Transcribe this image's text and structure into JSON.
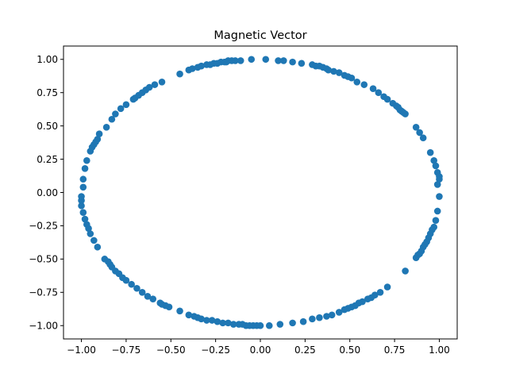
{
  "chart_data": {
    "type": "scatter",
    "title": "Magnetic Vector",
    "xlabel": "",
    "ylabel": "",
    "xlim": [
      -1.1,
      1.1
    ],
    "ylim": [
      -1.1,
      1.1
    ],
    "grid": false,
    "marker_color": "#1f77b4",
    "xticks": [
      -1.0,
      -0.75,
      -0.5,
      -0.25,
      0.0,
      0.25,
      0.5,
      0.75,
      1.0
    ],
    "xtick_labels": [
      "−1.00",
      "−0.75",
      "−0.50",
      "−0.25",
      "0.00",
      "0.25",
      "0.50",
      "0.75",
      "1.00"
    ],
    "yticks": [
      1.0,
      0.75,
      0.5,
      0.25,
      0.0,
      -0.25,
      -0.5,
      -0.75,
      -1.0
    ],
    "ytick_labels": [
      "1.00",
      "0.75",
      "0.50",
      "0.25",
      "0.00",
      "−0.25",
      "−0.50",
      "−0.75",
      "−1.00"
    ],
    "points": [
      [
        -0.45,
        0.89
      ],
      [
        -0.4,
        0.92
      ],
      [
        -0.38,
        0.93
      ],
      [
        -0.35,
        0.94
      ],
      [
        -0.33,
        0.95
      ],
      [
        -0.3,
        0.96
      ],
      [
        -0.28,
        0.96
      ],
      [
        -0.26,
        0.97
      ],
      [
        -0.24,
        0.97
      ],
      [
        -0.22,
        0.98
      ],
      [
        -0.2,
        0.98
      ],
      [
        -0.19,
        0.98
      ],
      [
        -0.18,
        0.99
      ],
      [
        -0.16,
        0.99
      ],
      [
        -0.14,
        0.99
      ],
      [
        -0.11,
        0.99
      ],
      [
        -0.05,
        1.0
      ],
      [
        0.03,
        1.0
      ],
      [
        0.1,
        0.99
      ],
      [
        0.13,
        0.99
      ],
      [
        0.18,
        0.98
      ],
      [
        0.23,
        0.97
      ],
      [
        0.29,
        0.96
      ],
      [
        0.31,
        0.95
      ],
      [
        0.33,
        0.95
      ],
      [
        0.35,
        0.94
      ],
      [
        0.37,
        0.93
      ],
      [
        0.38,
        0.92
      ],
      [
        0.41,
        0.91
      ],
      [
        0.44,
        0.9
      ],
      [
        0.47,
        0.88
      ],
      [
        0.49,
        0.87
      ],
      [
        0.51,
        0.86
      ],
      [
        0.54,
        0.83
      ],
      [
        0.58,
        0.81
      ],
      [
        0.63,
        0.78
      ],
      [
        0.66,
        0.75
      ],
      [
        0.69,
        0.72
      ],
      [
        0.71,
        0.7
      ],
      [
        0.74,
        0.67
      ],
      [
        0.76,
        0.65
      ],
      [
        0.77,
        0.64
      ],
      [
        0.78,
        0.62
      ],
      [
        0.79,
        0.61
      ],
      [
        0.8,
        0.6
      ],
      [
        0.81,
        0.59
      ],
      [
        0.87,
        0.49
      ],
      [
        0.89,
        0.45
      ],
      [
        0.91,
        0.41
      ],
      [
        0.95,
        0.3
      ],
      [
        0.97,
        0.24
      ],
      [
        0.98,
        0.2
      ],
      [
        0.99,
        0.15
      ],
      [
        1.0,
        0.12
      ],
      [
        1.0,
        0.1
      ],
      [
        0.99,
        0.06
      ],
      [
        1.0,
        -0.03
      ],
      [
        0.99,
        -0.14
      ],
      [
        0.98,
        -0.21
      ],
      [
        0.97,
        -0.26
      ],
      [
        0.96,
        -0.28
      ],
      [
        0.95,
        -0.31
      ],
      [
        0.94,
        -0.34
      ],
      [
        0.93,
        -0.37
      ],
      [
        0.92,
        -0.39
      ],
      [
        0.91,
        -0.41
      ],
      [
        0.9,
        -0.44
      ],
      [
        0.89,
        -0.46
      ],
      [
        0.88,
        -0.47
      ],
      [
        0.87,
        -0.49
      ],
      [
        0.81,
        -0.59
      ],
      [
        0.71,
        -0.71
      ],
      [
        0.67,
        -0.75
      ],
      [
        0.64,
        -0.77
      ],
      [
        0.62,
        -0.79
      ],
      [
        0.6,
        -0.8
      ],
      [
        0.57,
        -0.82
      ],
      [
        0.55,
        -0.83
      ],
      [
        0.53,
        -0.85
      ],
      [
        0.51,
        -0.86
      ],
      [
        0.49,
        -0.87
      ],
      [
        0.47,
        -0.88
      ],
      [
        0.44,
        -0.9
      ],
      [
        0.4,
        -0.92
      ],
      [
        0.37,
        -0.93
      ],
      [
        0.33,
        -0.94
      ],
      [
        0.29,
        -0.95
      ],
      [
        0.24,
        -0.97
      ],
      [
        0.18,
        -0.98
      ],
      [
        0.11,
        -0.99
      ],
      [
        0.05,
        -1.0
      ],
      [
        0.0,
        -1.0
      ],
      [
        -0.02,
        -1.0
      ],
      [
        -0.04,
        -1.0
      ],
      [
        -0.06,
        -1.0
      ],
      [
        -0.08,
        -1.0
      ],
      [
        -0.1,
        -0.99
      ],
      [
        -0.12,
        -0.99
      ],
      [
        -0.15,
        -0.99
      ],
      [
        -0.18,
        -0.98
      ],
      [
        -0.21,
        -0.98
      ],
      [
        -0.24,
        -0.97
      ],
      [
        -0.27,
        -0.96
      ],
      [
        -0.3,
        -0.96
      ],
      [
        -0.33,
        -0.95
      ],
      [
        -0.35,
        -0.94
      ],
      [
        -0.37,
        -0.93
      ],
      [
        -0.4,
        -0.92
      ],
      [
        -0.45,
        -0.89
      ],
      [
        -0.51,
        -0.86
      ],
      [
        -0.53,
        -0.85
      ],
      [
        -0.55,
        -0.84
      ],
      [
        -0.56,
        -0.83
      ],
      [
        -0.6,
        -0.8
      ],
      [
        -0.63,
        -0.78
      ],
      [
        -0.66,
        -0.75
      ],
      [
        -0.69,
        -0.72
      ],
      [
        -0.72,
        -0.69
      ],
      [
        -0.75,
        -0.66
      ],
      [
        -0.77,
        -0.64
      ],
      [
        -0.79,
        -0.61
      ],
      [
        -0.81,
        -0.59
      ],
      [
        -0.83,
        -0.56
      ],
      [
        -0.84,
        -0.54
      ],
      [
        -0.85,
        -0.52
      ],
      [
        -0.87,
        -0.5
      ],
      [
        -0.91,
        -0.41
      ],
      [
        -0.93,
        -0.36
      ],
      [
        -0.95,
        -0.31
      ],
      [
        -0.96,
        -0.27
      ],
      [
        -0.97,
        -0.24
      ],
      [
        -0.98,
        -0.2
      ],
      [
        -0.99,
        -0.15
      ],
      [
        -1.0,
        -0.1
      ],
      [
        -1.0,
        -0.06
      ],
      [
        -1.0,
        -0.03
      ],
      [
        -0.99,
        0.04
      ],
      [
        -0.99,
        0.1
      ],
      [
        -0.98,
        0.18
      ],
      [
        -0.97,
        0.24
      ],
      [
        -0.95,
        0.31
      ],
      [
        -0.94,
        0.34
      ],
      [
        -0.93,
        0.36
      ],
      [
        -0.92,
        0.38
      ],
      [
        -0.91,
        0.4
      ],
      [
        -0.9,
        0.44
      ],
      [
        -0.86,
        0.49
      ],
      [
        -0.83,
        0.55
      ],
      [
        -0.81,
        0.59
      ],
      [
        -0.78,
        0.63
      ],
      [
        -0.75,
        0.66
      ],
      [
        -0.71,
        0.7
      ],
      [
        -0.7,
        0.71
      ],
      [
        -0.68,
        0.73
      ],
      [
        -0.66,
        0.75
      ],
      [
        -0.64,
        0.77
      ],
      [
        -0.62,
        0.79
      ],
      [
        -0.59,
        0.81
      ],
      [
        -0.55,
        0.83
      ]
    ]
  }
}
